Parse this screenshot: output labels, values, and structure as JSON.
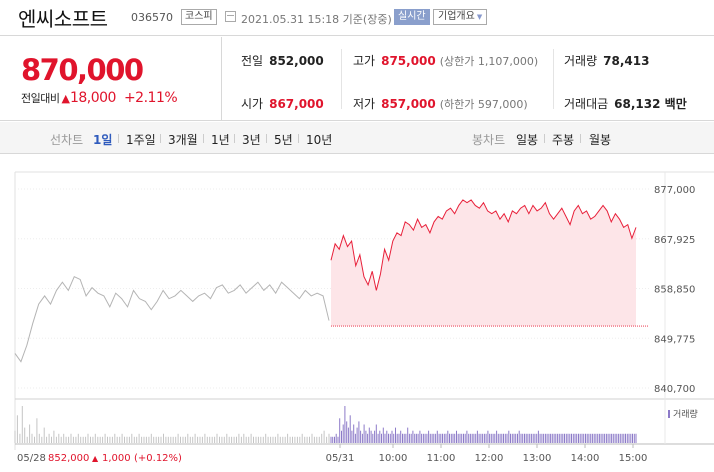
{
  "header": {
    "name": "엔씨소프트",
    "code": "036570",
    "market": "코스피",
    "date": "2021.05.31 15:18 기준(장중)",
    "realtime_label": "실시간",
    "company_label": "기업개요"
  },
  "quote": {
    "price": "870,000",
    "change_label": "전일대비",
    "change_arrow": "▲",
    "change_amount": "18,000",
    "change_pct": "+2.11%",
    "cells": {
      "prev_close": {
        "label": "전일",
        "value": "852,000"
      },
      "high": {
        "label": "고가",
        "value": "875,000",
        "sub": "(상한가 1,107,000)"
      },
      "volume": {
        "label": "거래량",
        "value": "78,413"
      },
      "open": {
        "label": "시가",
        "value": "867,000"
      },
      "low": {
        "label": "저가",
        "value": "857,000",
        "sub": "(하한가 597,000)"
      },
      "amount": {
        "label": "거래대금",
        "value": "68,132 백만"
      }
    },
    "colors": {
      "up": "#e0142c",
      "text": "#222222"
    }
  },
  "toolbar": {
    "line_label": "선차트",
    "periods": [
      "1일",
      "1주일",
      "3개월",
      "1년",
      "3년",
      "5년",
      "10년"
    ],
    "active_period": "1일",
    "candle_label": "봉차트",
    "candles": [
      "일봉",
      "주봉",
      "월봉"
    ]
  },
  "chart_data": {
    "type": "line",
    "y_ticks": [
      "877,000",
      "867,925",
      "858,850",
      "849,775",
      "840,700"
    ],
    "ylim": [
      840700,
      877000
    ],
    "x_ticks": [
      "05/28",
      "05/31",
      "10:00",
      "11:00",
      "12:00",
      "13:00",
      "14:00",
      "15:00"
    ],
    "legend": "거래량",
    "prev_close": 852000,
    "grid": true,
    "series": [
      {
        "values": [
          847000,
          845500,
          848500,
          852500,
          856000,
          857500,
          856000,
          858500,
          860000,
          858500,
          861000,
          860500,
          857500,
          859000,
          858000,
          857500,
          855500,
          858000,
          857000,
          855500,
          858500,
          857000,
          856500,
          855000,
          856500,
          858500,
          857000,
          857500,
          858500,
          857500,
          856500,
          857500,
          858000,
          857000,
          859000,
          859500,
          858000,
          858500,
          859500,
          858000,
          859000,
          860000,
          858500,
          859500,
          858000,
          860000,
          859000,
          858000,
          857000,
          858500,
          857500,
          858000,
          857500,
          853000
        ]
      },
      {
        "values": [
          864000,
          867000,
          866000,
          868500,
          866500,
          867500,
          863000,
          865000,
          861000,
          859500,
          862000,
          858500,
          861500,
          866000,
          864000,
          867500,
          869000,
          868500,
          871000,
          870500,
          869500,
          871500,
          870000,
          870500,
          869000,
          871000,
          872000,
          871500,
          873000,
          873500,
          872500,
          874000,
          875000,
          874500,
          875000,
          874000,
          873500,
          874500,
          873000,
          872500,
          873000,
          871500,
          872500,
          871000,
          873000,
          872500,
          873500,
          874000,
          872500,
          874000,
          873000,
          873500,
          874500,
          872500,
          871500,
          872500,
          873500,
          872000,
          870500,
          873000,
          874000,
          872500,
          873000,
          871500,
          872000,
          873000,
          874000,
          873000,
          871000,
          872500,
          871500,
          870000,
          870500,
          868000,
          870000
        ]
      }
    ],
    "volume": [
      4,
      9,
      3,
      12,
      5,
      2,
      6,
      3,
      2,
      8,
      3,
      2,
      5,
      2,
      3,
      2,
      4,
      2,
      3,
      2,
      3,
      2,
      2,
      3,
      2,
      2,
      3,
      2,
      2,
      2,
      3,
      2,
      2,
      3,
      2,
      2,
      2,
      3,
      2,
      2,
      2,
      3,
      2,
      2,
      3,
      2,
      2,
      2,
      3,
      2,
      2,
      3,
      2,
      2,
      2,
      2,
      3,
      2,
      2,
      2,
      2,
      3,
      2,
      2,
      2,
      2,
      2,
      3,
      2,
      2,
      2,
      3,
      2,
      2,
      3,
      2,
      2,
      2,
      3,
      2,
      2,
      2,
      2,
      3,
      2,
      2,
      2,
      3,
      2,
      2,
      2,
      2,
      3,
      2,
      3,
      2,
      2,
      3,
      2,
      2,
      2,
      2,
      2,
      3,
      2,
      2,
      2,
      2,
      3,
      2,
      2,
      2,
      3,
      2,
      2,
      2,
      2,
      2,
      3,
      2,
      2,
      2,
      3,
      2,
      2,
      2,
      3,
      4,
      2,
      3,
      2,
      2,
      2,
      3,
      2,
      8,
      4,
      6,
      12,
      7,
      5,
      9,
      4,
      6,
      3,
      5,
      7,
      4,
      3,
      6,
      4,
      3,
      5,
      4,
      3,
      4,
      6,
      3,
      4,
      3,
      5,
      3,
      4,
      3,
      3,
      4,
      3,
      5,
      3,
      3,
      4,
      3,
      3,
      3,
      5,
      3,
      3,
      4,
      3,
      3,
      3,
      4,
      3,
      3,
      3,
      3,
      4,
      3,
      3,
      3,
      3,
      4,
      3,
      3,
      3,
      3,
      3,
      4,
      3,
      3,
      3,
      3,
      4,
      3,
      3,
      3,
      3,
      3,
      4,
      3,
      3,
      3,
      3,
      3,
      4,
      3,
      3,
      3,
      3,
      3,
      4,
      3,
      3,
      3,
      3,
      4,
      3,
      3,
      3,
      3,
      3,
      3,
      4,
      3,
      3,
      3,
      3,
      3,
      4,
      3,
      3,
      3,
      3,
      3,
      3,
      3,
      3,
      3,
      3,
      4,
      3,
      3,
      3,
      3,
      3,
      3,
      3,
      3,
      3,
      3,
      3,
      3,
      3,
      3,
      3,
      3,
      3,
      3,
      3,
      3,
      3,
      3,
      3,
      3,
      3,
      3,
      3,
      3,
      3,
      3,
      3,
      3,
      3,
      3,
      3,
      3,
      3,
      3,
      3,
      3,
      3,
      3,
      3,
      3,
      3,
      3,
      3,
      3,
      3,
      3,
      3,
      3,
      3,
      3,
      3,
      3
    ],
    "volume_scale": {
      "count_prev": 130,
      "peak": 12
    },
    "footer": {
      "price": "852,000",
      "arrow": "▲",
      "change": "1,000",
      "pct": "(+0.12%)"
    },
    "colors": {
      "prev_line": "#b4b4b4",
      "today_line": "#e8203a",
      "fill": "#fde5e8",
      "base": "#e8203a",
      "grid": "#eeeeee",
      "volume_prev": "#c4c4c4",
      "volume_today": "#8c7ac8",
      "legend": "#8c7ac8",
      "up": "#e0142c"
    }
  }
}
